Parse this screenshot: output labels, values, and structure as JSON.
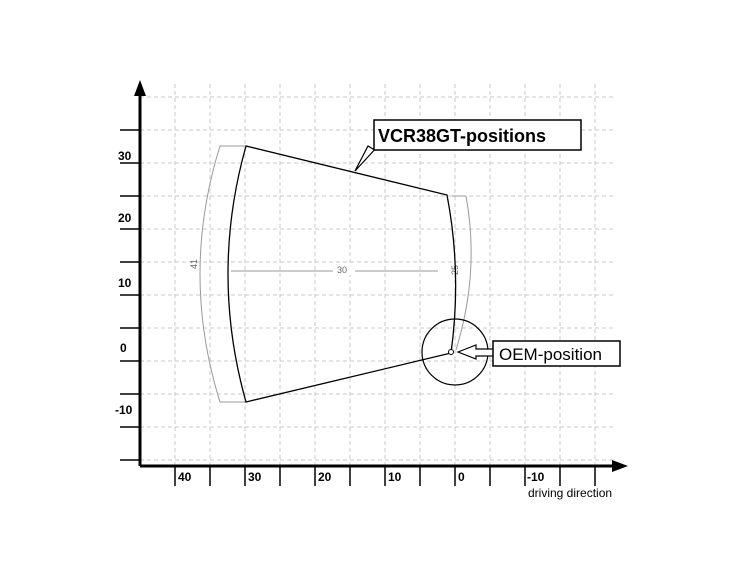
{
  "axes": {
    "x_ticks": [
      "40",
      "30",
      "20",
      "10",
      "0",
      "-10"
    ],
    "y_ticks": [
      "30",
      "20",
      "10",
      "0",
      "-10"
    ],
    "x_caption": "driving direction"
  },
  "callouts": {
    "positions_label": "VCR38GT-positions",
    "oem_label": "OEM-position"
  },
  "dimensions": {
    "outer_arc": "41",
    "span": "30",
    "inner_arc": "25"
  },
  "colors": {
    "grid": "#c8c8c8",
    "dimension": "#999999",
    "outline": "#000000"
  }
}
